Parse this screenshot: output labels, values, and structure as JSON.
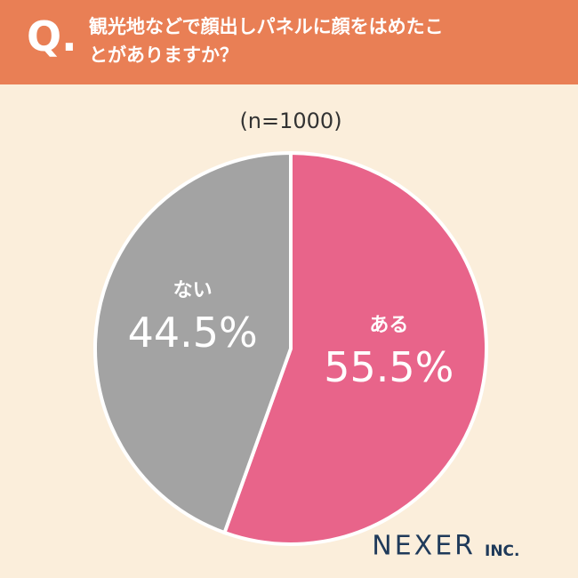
{
  "question_label": "Q.",
  "chart_data": {
    "type": "pie",
    "title": "観光地などで顔出しパネルに顔をはめたことがありますか？",
    "subtitle": "(n=1000)",
    "categories": [
      "ある",
      "ない"
    ],
    "values": [
      55.5,
      44.5
    ],
    "value_labels": [
      "55.5%",
      "44.5%"
    ],
    "colors": [
      "#e8648a",
      "#a3a3a3"
    ]
  },
  "brand": {
    "name": "NEXER",
    "suffix": "INC."
  }
}
